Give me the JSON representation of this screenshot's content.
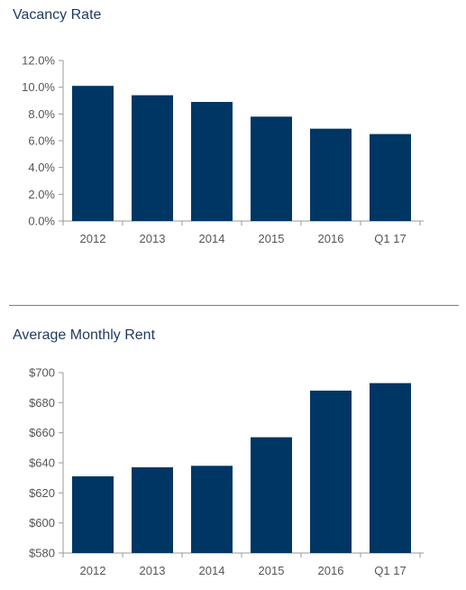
{
  "chart_data": [
    {
      "type": "bar",
      "title": "Vacancy Rate",
      "categories": [
        "2012",
        "2013",
        "2014",
        "2015",
        "2016",
        "Q1 17"
      ],
      "values": [
        10.1,
        9.4,
        8.9,
        7.8,
        6.9,
        6.5
      ],
      "ylim": [
        0,
        12
      ],
      "yticks": [
        0,
        2,
        4,
        6,
        8,
        10,
        12
      ],
      "ytick_labels": [
        "0.0%",
        "2.0%",
        "4.0%",
        "6.0%",
        "8.0%",
        "10.0%",
        "12.0%"
      ],
      "bar_color": "#003663",
      "grid": false
    },
    {
      "type": "bar",
      "title": "Average Monthly Rent",
      "categories": [
        "2012",
        "2013",
        "2014",
        "2015",
        "2016",
        "Q1 17"
      ],
      "values": [
        631,
        637,
        638,
        657,
        688,
        693
      ],
      "ylim": [
        580,
        700
      ],
      "yticks": [
        580,
        600,
        620,
        640,
        660,
        680,
        700
      ],
      "ytick_labels": [
        "$580",
        "$600",
        "$620",
        "$640",
        "$660",
        "$680",
        "$700"
      ],
      "bar_color": "#003663",
      "grid": false
    }
  ]
}
